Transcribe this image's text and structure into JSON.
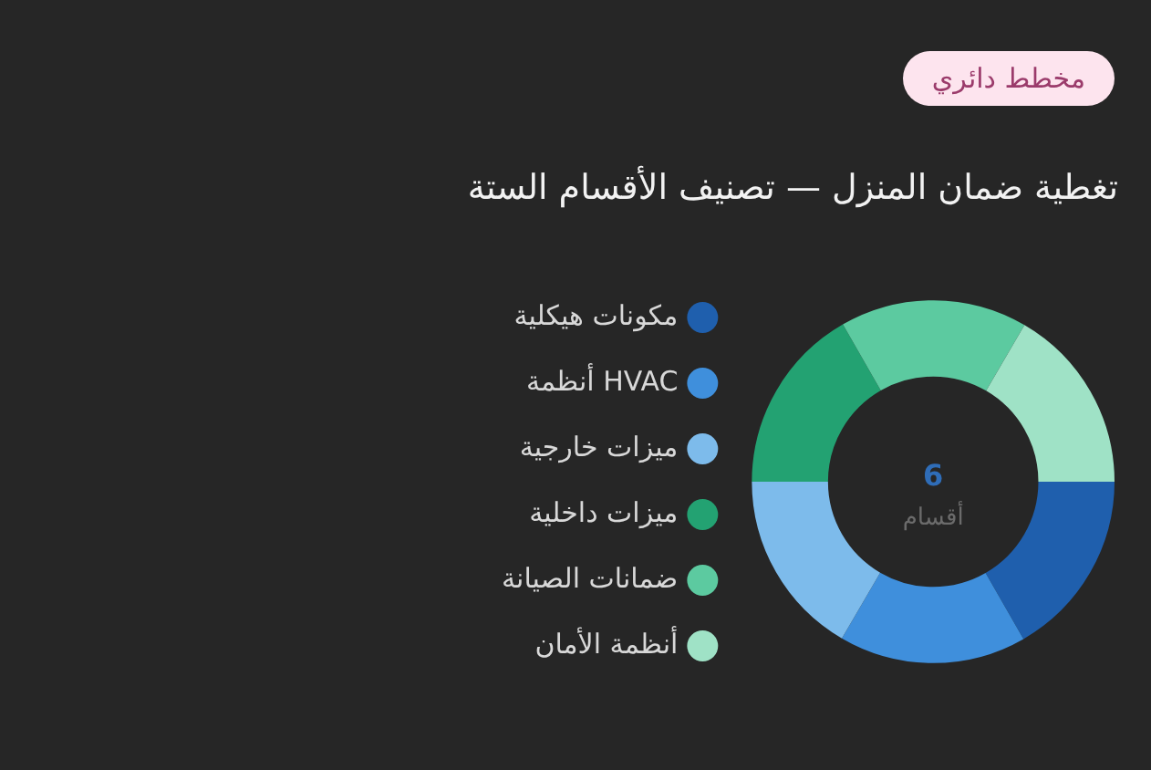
{
  "chart_data": {
    "type": "donut",
    "title": "تغطية ضمان المنزل — تصنيف الأقسام الستة",
    "categories": [
      "مكونات هيكلية",
      "أنظمة HVAC",
      "ميزات خارجية",
      "ميزات داخلية",
      "ضمانات الصيانة",
      "أنظمة الأمان"
    ],
    "values": [
      16.7,
      16.7,
      16.6,
      16.7,
      16.7,
      16.6
    ],
    "colors": [
      "#1f5fad",
      "#3f8fdc",
      "#7dbbeb",
      "#23a272",
      "#5ccaa0",
      "#9fe2c6"
    ],
    "legend": "left",
    "annotations": [
      "مخطط دائري",
      "6",
      "أقسام"
    ]
  }
}
